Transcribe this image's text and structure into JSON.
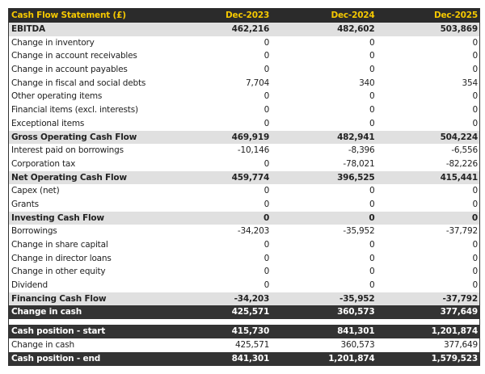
{
  "header": {
    "title": "Cash Flow Statement (£)",
    "columns": [
      "Dec-2023",
      "Dec-2024",
      "Dec-2025"
    ]
  },
  "colors": {
    "header_bg": "#2b2b2b",
    "header_text": "#f5c800",
    "subtotal_bg": "#e0e0e0",
    "total_bg": "#333333"
  },
  "rows": [
    {
      "label": "EBITDA",
      "values": [
        "462,216",
        "482,602",
        "503,869"
      ],
      "type": "sub"
    },
    {
      "label": "Change in inventory",
      "values": [
        "0",
        "0",
        "0"
      ],
      "type": "normal"
    },
    {
      "label": "Change in account receivables",
      "values": [
        "0",
        "0",
        "0"
      ],
      "type": "normal"
    },
    {
      "label": "Change in account payables",
      "values": [
        "0",
        "0",
        "0"
      ],
      "type": "normal"
    },
    {
      "label": "Change in fiscal and social debts",
      "values": [
        "7,704",
        "340",
        "354"
      ],
      "type": "normal"
    },
    {
      "label": "Other operating items",
      "values": [
        "0",
        "0",
        "0"
      ],
      "type": "normal"
    },
    {
      "label": "Financial items (excl. interests)",
      "values": [
        "0",
        "0",
        "0"
      ],
      "type": "normal"
    },
    {
      "label": "Exceptional items",
      "values": [
        "0",
        "0",
        "0"
      ],
      "type": "normal"
    },
    {
      "label": "Gross Operating Cash Flow",
      "values": [
        "469,919",
        "482,941",
        "504,224"
      ],
      "type": "sub"
    },
    {
      "label": "Interest paid on borrowings",
      "values": [
        "-10,146",
        "-8,396",
        "-6,556"
      ],
      "type": "normal"
    },
    {
      "label": "Corporation tax",
      "values": [
        "0",
        "-78,021",
        "-82,226"
      ],
      "type": "normal"
    },
    {
      "label": "Net Operating Cash Flow",
      "values": [
        "459,774",
        "396,525",
        "415,441"
      ],
      "type": "sub"
    },
    {
      "label": "Capex (net)",
      "values": [
        "0",
        "0",
        "0"
      ],
      "type": "normal"
    },
    {
      "label": "Grants",
      "values": [
        "0",
        "0",
        "0"
      ],
      "type": "normal"
    },
    {
      "label": "Investing Cash Flow",
      "values": [
        "0",
        "0",
        "0"
      ],
      "type": "sub"
    },
    {
      "label": "Borrowings",
      "values": [
        "-34,203",
        "-35,952",
        "-37,792"
      ],
      "type": "normal"
    },
    {
      "label": "Change in share capital",
      "values": [
        "0",
        "0",
        "0"
      ],
      "type": "normal"
    },
    {
      "label": "Change in director loans",
      "values": [
        "0",
        "0",
        "0"
      ],
      "type": "normal"
    },
    {
      "label": "Change in other equity",
      "values": [
        "0",
        "0",
        "0"
      ],
      "type": "normal"
    },
    {
      "label": "Dividend",
      "values": [
        "0",
        "0",
        "0"
      ],
      "type": "normal"
    },
    {
      "label": "Financing Cash Flow",
      "values": [
        "-34,203",
        "-35,952",
        "-37,792"
      ],
      "type": "sub"
    },
    {
      "label": "Change in cash",
      "values": [
        "425,571",
        "360,573",
        "377,649"
      ],
      "type": "dark"
    }
  ],
  "position_rows": [
    {
      "label": "Cash position - start",
      "values": [
        "415,730",
        "841,301",
        "1,201,874"
      ],
      "type": "dark"
    },
    {
      "label": "Change in cash",
      "values": [
        "425,571",
        "360,573",
        "377,649"
      ],
      "type": "normal"
    },
    {
      "label": "Cash position - end",
      "values": [
        "841,301",
        "1,201,874",
        "1,579,523"
      ],
      "type": "dark"
    }
  ]
}
